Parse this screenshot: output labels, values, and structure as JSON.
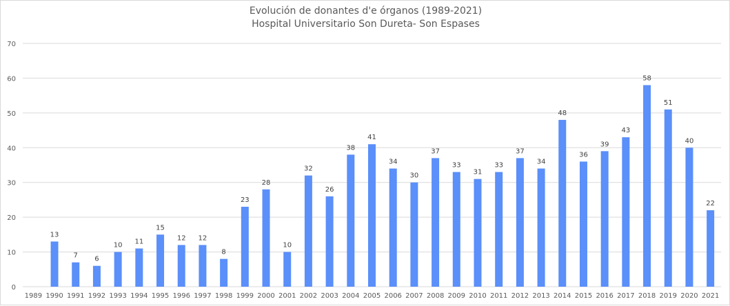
{
  "chart_data": {
    "type": "bar",
    "title": "Evolución de donantes d'e órganos (1989-2021)",
    "subtitle": "Hospital Universitario Son Dureta- Son Espases",
    "xlabel": "",
    "ylabel": "",
    "ylim": [
      0,
      70
    ],
    "yticks": [
      0,
      10,
      20,
      30,
      40,
      50,
      60,
      70
    ],
    "grid": true,
    "legend": "none",
    "bar_color": "#5B8FF9",
    "categories": [
      "1989",
      "1990",
      "1991",
      "1992",
      "1993",
      "1994",
      "1995",
      "1996",
      "1997",
      "1998",
      "1999",
      "2000",
      "2001",
      "2002",
      "2003",
      "2004",
      "2005",
      "2006",
      "2007",
      "2008",
      "2009",
      "2010",
      "2011",
      "2012",
      "2013",
      "2014",
      "2015",
      "2016",
      "2017",
      "2018",
      "2019",
      "2020",
      "2021"
    ],
    "values": [
      null,
      13,
      7,
      6,
      10,
      11,
      15,
      12,
      12,
      8,
      23,
      28,
      10,
      32,
      26,
      38,
      41,
      34,
      30,
      37,
      33,
      31,
      33,
      37,
      34,
      48,
      36,
      39,
      43,
      58,
      51,
      40,
      22
    ],
    "data_labels": [
      "",
      "13",
      "7",
      "6",
      "10",
      "11",
      "15",
      "12",
      "12",
      "8",
      "23",
      "28",
      "10",
      "32",
      "26",
      "38",
      "41",
      "34",
      "30",
      "37",
      "33",
      "31",
      "33",
      "37",
      "34",
      "48",
      "36",
      "39",
      "43",
      "58",
      "51",
      "40",
      "22"
    ]
  }
}
